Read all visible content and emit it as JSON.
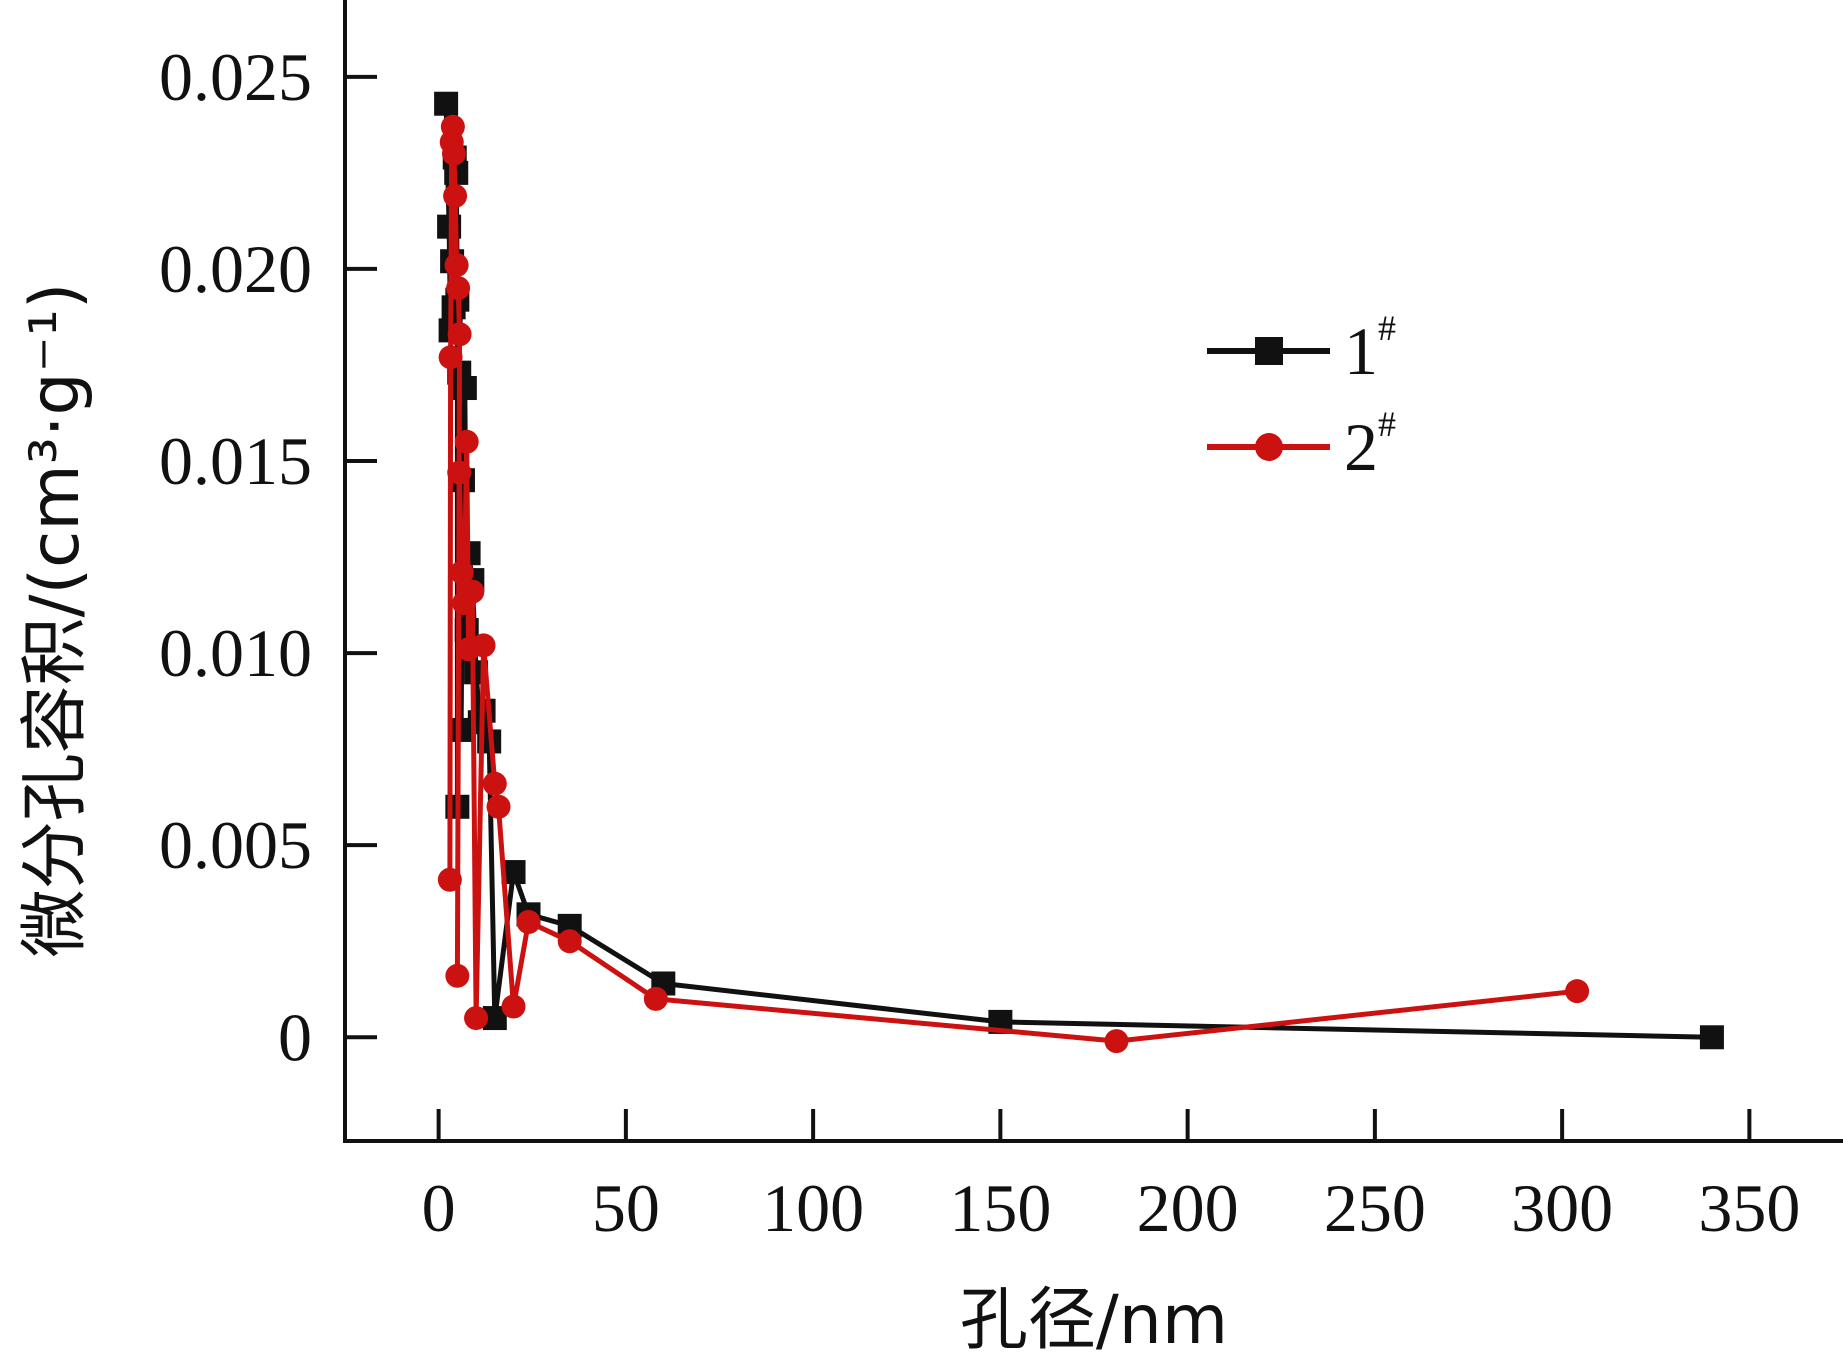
{
  "chart_data": {
    "type": "line",
    "xlabel": "孔径/nm",
    "ylabel": "微分孔容积/(cm³·g⁻¹)",
    "xlim": [
      -25,
      375
    ],
    "ylim": [
      -0.0027,
      0.027
    ],
    "x_ticks": [
      "0",
      "50",
      "100",
      "150",
      "200",
      "250",
      "300",
      "350"
    ],
    "y_ticks": [
      "0",
      "0.005",
      "0.010",
      "0.015",
      "0.020",
      "0.025"
    ],
    "x_tick_values": [
      0,
      50,
      100,
      150,
      200,
      250,
      300,
      350
    ],
    "y_tick_values": [
      0,
      0.005,
      0.01,
      0.015,
      0.02,
      0.025
    ],
    "legend_position": "top-right",
    "series": [
      {
        "name": "1#",
        "legend_base": "1",
        "legend_sup": "#",
        "color": "#111111",
        "marker": "square",
        "points": [
          [
            2.0,
            0.0243
          ],
          [
            2.8,
            0.0211
          ],
          [
            3.2,
            0.0184
          ],
          [
            3.6,
            0.0202
          ],
          [
            4.0,
            0.019
          ],
          [
            4.3,
            0.0229
          ],
          [
            4.7,
            0.0225
          ],
          [
            5.0,
            0.0192
          ],
          [
            5.0,
            0.006
          ],
          [
            5.5,
            0.0173
          ],
          [
            6.0,
            0.008
          ],
          [
            6.5,
            0.0145
          ],
          [
            7.0,
            0.0169
          ],
          [
            7.5,
            0.0106
          ],
          [
            8.0,
            0.0126
          ],
          [
            9.0,
            0.0119
          ],
          [
            10.0,
            0.0095
          ],
          [
            11.0,
            0.0082
          ],
          [
            12.0,
            0.0085
          ],
          [
            13.5,
            0.0077
          ],
          [
            15.0,
            0.0005
          ],
          [
            20.0,
            0.0043
          ],
          [
            24.0,
            0.0032
          ],
          [
            35.0,
            0.0029
          ],
          [
            60.0,
            0.0014
          ],
          [
            150.0,
            0.0004
          ],
          [
            340.0,
            0.0
          ]
        ]
      },
      {
        "name": "2#",
        "legend_base": "2",
        "legend_sup": "#",
        "color": "#cc1111",
        "marker": "circle",
        "points": [
          [
            3.0,
            0.0041
          ],
          [
            3.2,
            0.0177
          ],
          [
            3.5,
            0.0233
          ],
          [
            3.8,
            0.0237
          ],
          [
            4.1,
            0.023
          ],
          [
            4.4,
            0.0219
          ],
          [
            4.8,
            0.0201
          ],
          [
            5.2,
            0.0195
          ],
          [
            5.6,
            0.0183
          ],
          [
            5.0,
            0.0016
          ],
          [
            5.5,
            0.0147
          ],
          [
            6.2,
            0.0121
          ],
          [
            6.8,
            0.0113
          ],
          [
            7.5,
            0.0155
          ],
          [
            8.0,
            0.0101
          ],
          [
            9.0,
            0.0116
          ],
          [
            10.0,
            0.0005
          ],
          [
            12.0,
            0.0102
          ],
          [
            15.0,
            0.0066
          ],
          [
            16.0,
            0.006
          ],
          [
            20.0,
            0.0008
          ],
          [
            24.0,
            0.003
          ],
          [
            35.0,
            0.0025
          ],
          [
            58.0,
            0.001
          ],
          [
            181.0,
            -0.0001
          ],
          [
            304.0,
            0.0012
          ]
        ]
      }
    ]
  }
}
